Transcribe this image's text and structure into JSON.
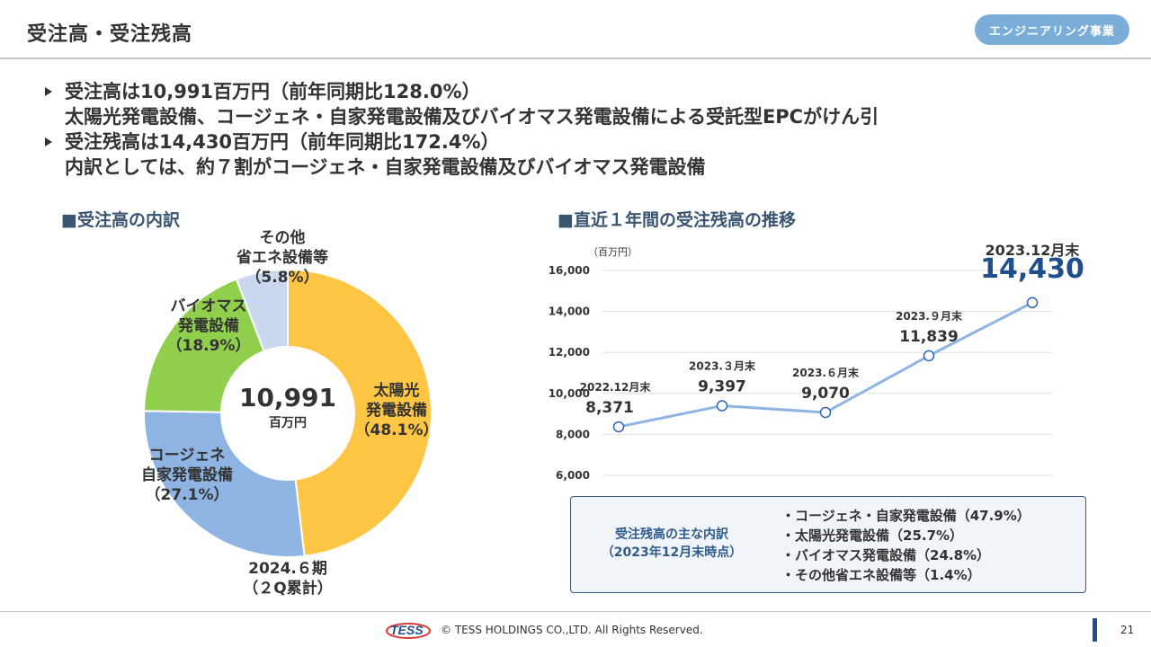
{
  "header": {
    "title": "受注高・受注残高",
    "badge": "エンジニアリング事業"
  },
  "bullets": [
    [
      "受注高は10,991百万円（前年同期比128.0%）",
      "太陽光発電設備、コージェネ・自家発電設備及びバイオマス発電設備による受託型EPCがけん引"
    ],
    [
      "受注残高は14,430百万円（前年同期比172.4%）",
      "内訳としては、約７割がコージェネ・自家発電設備及びバイオマス発電設備"
    ]
  ],
  "left_section": {
    "title": "■受注高の内訳"
  },
  "right_section": {
    "title": "■直近１年間の受注残高の推移"
  },
  "donut": {
    "center_value": "10,991",
    "center_unit": "百万円",
    "period_line1": "2024.６期",
    "period_line2": "（２Q累計）",
    "labels": {
      "solar": [
        "太陽光",
        "発電設備",
        "（48.1%）"
      ],
      "cogen": [
        "コージェネ",
        "自家発電設備",
        "（27.1%）"
      ],
      "biomass": [
        "バイオマス",
        "発電設備",
        "（18.9%）"
      ],
      "other": [
        "その他",
        "省エネ設備等",
        "（5.8%）"
      ]
    }
  },
  "callout": {
    "head_line1": "受注残高の主な内訳",
    "head_line2": "（2023年12月末時点）",
    "items": [
      "・コージェネ・自家発電設備（47.9%）",
      "・太陽光発電設備（25.7%）",
      "・バイオマス発電設備（24.8%）",
      "・その他省エネ設備等（1.4%）"
    ]
  },
  "footer": {
    "logo_text": "TESS",
    "copyright": "© TESS HOLDINGS CO.,LTD. All Rights Reserved.",
    "page": "21"
  },
  "chart_data": [
    {
      "type": "pie",
      "donut": true,
      "labels": [
        "太陽光発電設備",
        "コージェネ自家発電設備",
        "バイオマス発電設備",
        "その他省エネ設備等"
      ],
      "values": [
        48.1,
        27.1,
        18.9,
        5.8
      ],
      "colors": [
        "#ffc545",
        "#8eb4e3",
        "#8fcf4b",
        "#c9d8ef"
      ]
    },
    {
      "type": "line",
      "ylabel": "（百万円）",
      "ylim": [
        6000,
        16000
      ],
      "yticks": [
        6000,
        8000,
        10000,
        12000,
        14000,
        16000
      ],
      "grid": true,
      "x": [
        "2022.12月末",
        "2023.３月末",
        "2023.６月末",
        "2023.９月末",
        "2023.12月末"
      ],
      "series": [
        {
          "values": [
            8371,
            9397,
            9070,
            11839,
            14430
          ],
          "color": "#8eb4e3"
        }
      ],
      "value_labels": [
        "8,371",
        "9,397",
        "9,070",
        "11,839",
        "14,430"
      ]
    }
  ]
}
